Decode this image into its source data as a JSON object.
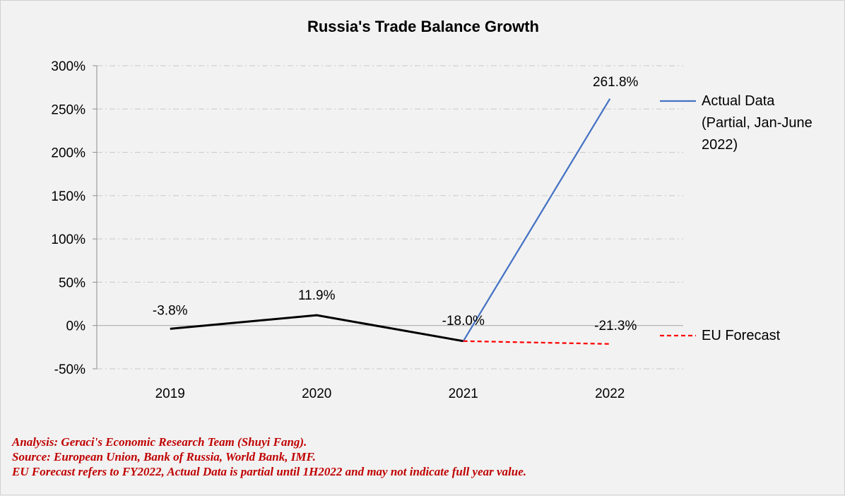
{
  "chart_data": {
    "type": "line",
    "title": "Russia's Trade Balance Growth",
    "categories": [
      "2019",
      "2020",
      "2021",
      "2022"
    ],
    "ylim": [
      -50,
      300
    ],
    "yticks": [
      -50,
      0,
      50,
      100,
      150,
      200,
      250,
      300
    ],
    "ytick_labels": [
      "-50%",
      "0%",
      "50%",
      "100%",
      "150%",
      "200%",
      "250%",
      "300%"
    ],
    "grid": true,
    "legend_position": "right",
    "historical": {
      "x": [
        "2019",
        "2020",
        "2021"
      ],
      "values": [
        -3.8,
        11.9,
        -18.0
      ],
      "labels": [
        "-3.8%",
        "11.9%",
        "-18.0%"
      ],
      "color": "#000000"
    },
    "series": [
      {
        "name": "Actual Data (Partial, Jan-June 2022)",
        "legend_lines": [
          "Actual Data",
          "(Partial, Jan-June",
          "2022)"
        ],
        "x": [
          "2021",
          "2022"
        ],
        "values": [
          -18.0,
          261.8
        ],
        "end_label": "261.8%",
        "color": "#4472c4",
        "style": "solid"
      },
      {
        "name": "EU Forecast",
        "legend_lines": [
          "EU Forecast"
        ],
        "x": [
          "2021",
          "2022"
        ],
        "values": [
          -18.0,
          -21.3
        ],
        "end_label": "-21.3%",
        "color": "#ff0000",
        "style": "dashed"
      }
    ]
  },
  "notes": [
    "Analysis: Geraci's Economic Research Team (Shuyi Fang).",
    "Source: European Union, Bank of Russia, World Bank, IMF.",
    "EU Forecast refers to FY2022, Actual Data is partial until 1H2022 and may not indicate full year value."
  ]
}
